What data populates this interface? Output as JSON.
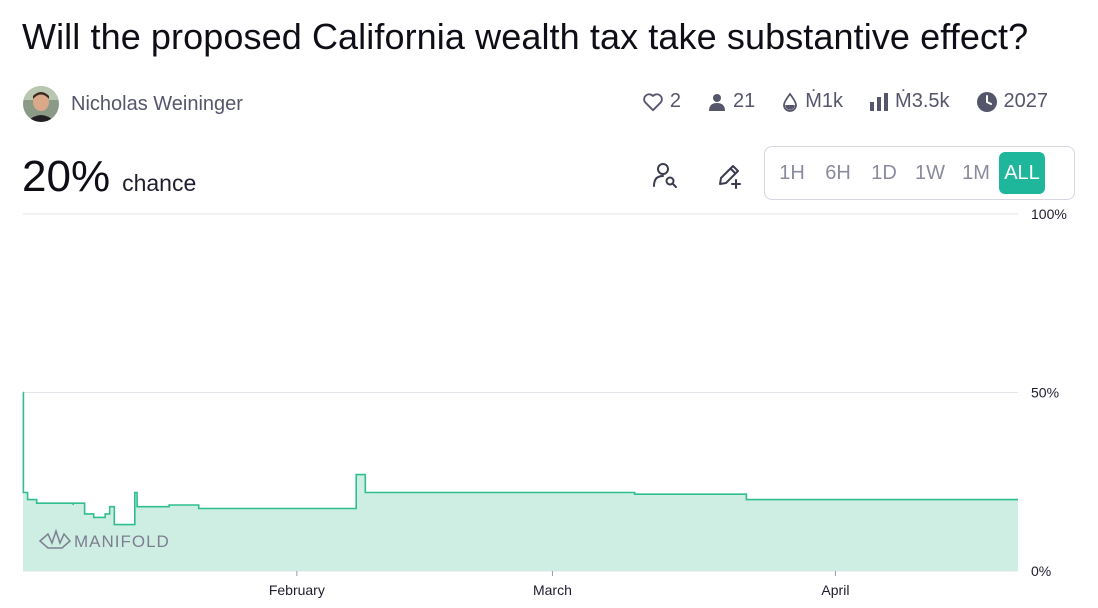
{
  "market": {
    "title": "Will the proposed California wealth tax take substantive effect?",
    "author": "Nicholas Weininger",
    "stats": {
      "likes": "2",
      "traders": "21",
      "liquidity": "Ṁ1k",
      "volume": "Ṁ3.5k",
      "close": "2027"
    },
    "probability": "20%",
    "probability_label": "chance"
  },
  "colors": {
    "accent": "#1fb79b",
    "line": "#2fbf8f",
    "area": "#cfeee3",
    "muted": "#55566b"
  },
  "icons": {
    "likes": "heart-icon",
    "traders": "user-icon",
    "liquidity": "droplet-icon",
    "volume": "bar-chart-icon",
    "close": "clock-icon",
    "find_user": "user-search-icon",
    "edit": "pencil-plus-icon"
  },
  "time_ranges": [
    "1H",
    "6H",
    "1D",
    "1W",
    "1M",
    "ALL"
  ],
  "selected_range": "ALL",
  "chart_data": {
    "type": "area",
    "watermark": "MANIFOLD",
    "ylim": [
      0,
      100
    ],
    "y_ticks": [
      {
        "value": 100,
        "label": "100%"
      },
      {
        "value": 50,
        "label": "50%"
      },
      {
        "value": 0,
        "label": "0%"
      }
    ],
    "x_range": [
      "2025-01-02",
      "2025-04-21"
    ],
    "x_ticks": [
      {
        "date": "2025-02-01",
        "label": "February"
      },
      {
        "date": "2025-03-01",
        "label": "March"
      },
      {
        "date": "2025-04-01",
        "label": "April"
      }
    ],
    "grid": "horizontal",
    "series": [
      {
        "points": [
          [
            "2025-01-02T00:00",
            50
          ],
          [
            "2025-01-02T01:00",
            22
          ],
          [
            "2025-01-02T12:00",
            20
          ],
          [
            "2025-01-03T12:00",
            19
          ],
          [
            "2025-01-07T12:00",
            18.5
          ],
          [
            "2025-01-07T12:00",
            19
          ],
          [
            "2025-01-08T18:00",
            16
          ],
          [
            "2025-01-09T18:00",
            15
          ],
          [
            "2025-01-11T00:00",
            16
          ],
          [
            "2025-01-11T12:00",
            18
          ],
          [
            "2025-01-12T00:00",
            13
          ],
          [
            "2025-01-14T00:00",
            13
          ],
          [
            "2025-01-14T06:00",
            22
          ],
          [
            "2025-01-14T12:00",
            18
          ],
          [
            "2025-01-16T12:00",
            18
          ],
          [
            "2025-01-18T00:00",
            18.5
          ],
          [
            "2025-01-21T00:00",
            18.5
          ],
          [
            "2025-01-21T06:00",
            17.5
          ],
          [
            "2025-02-07T00:00",
            17.5
          ],
          [
            "2025-02-07T12:00",
            27
          ],
          [
            "2025-02-08T00:00",
            27
          ],
          [
            "2025-02-08T12:00",
            22
          ],
          [
            "2025-03-08T00:00",
            22
          ],
          [
            "2025-03-10T00:00",
            21.5
          ],
          [
            "2025-03-22T00:00",
            21.5
          ],
          [
            "2025-03-22T06:00",
            20
          ],
          [
            "2025-04-21T00:00",
            20
          ]
        ]
      }
    ]
  }
}
